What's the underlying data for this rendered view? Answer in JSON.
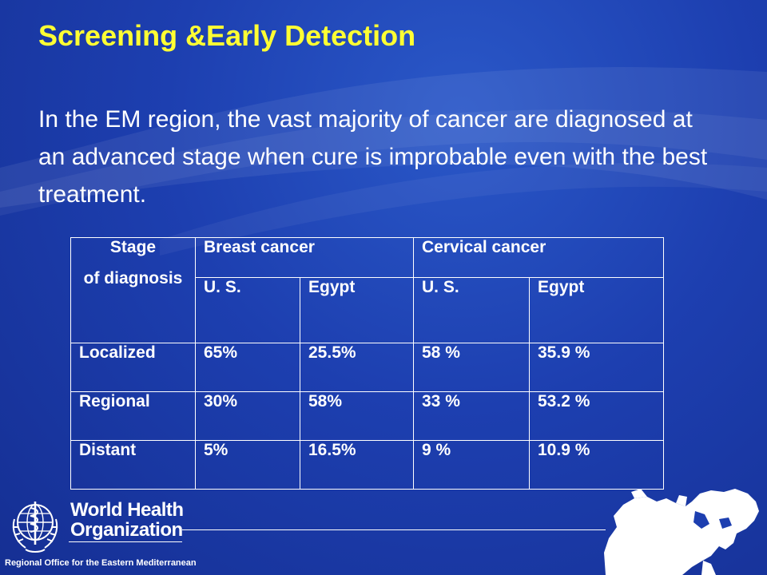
{
  "slide": {
    "title": "Screening &Early Detection",
    "intro": "In the EM region, the vast majority of cancer are diagnosed at an advanced stage when cure is improbable even with the best treatment."
  },
  "table": {
    "stage_header_line1": "Stage",
    "stage_header_line2": "of diagnosis",
    "group_headers": [
      "Breast cancer",
      "Cervical cancer"
    ],
    "sub_headers": [
      "U. S.",
      "Egypt",
      "U. S.",
      "Egypt"
    ],
    "rows": [
      {
        "stage": "Localized",
        "values": [
          "65%",
          "25.5%",
          "58 %",
          "35.9 %"
        ]
      },
      {
        "stage": "Regional",
        "values": [
          "30%",
          "58%",
          "33 %",
          "53.2 %"
        ]
      },
      {
        "stage": "Distant",
        "values": [
          "5%",
          "16.5%",
          "9 %",
          "10.9 %"
        ]
      }
    ]
  },
  "footer": {
    "org_line1": "World Health",
    "org_line2": "Organization",
    "org_subtitle": "Regional Office for the Eastern Mediterranean",
    "emblem_icon": "who-emblem-icon",
    "map_icon": "eastern-mediterranean-map-icon"
  },
  "colors": {
    "background": "#1d3fb0",
    "title": "#ffff33",
    "text": "#ffffff"
  }
}
